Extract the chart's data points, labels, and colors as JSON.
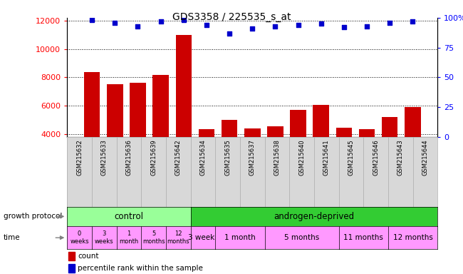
{
  "title": "GDS3358 / 225535_s_at",
  "samples": [
    "GSM215632",
    "GSM215633",
    "GSM215636",
    "GSM215639",
    "GSM215642",
    "GSM215634",
    "GSM215635",
    "GSM215637",
    "GSM215638",
    "GSM215640",
    "GSM215641",
    "GSM215645",
    "GSM215646",
    "GSM215643",
    "GSM215644"
  ],
  "counts": [
    8400,
    7500,
    7600,
    8200,
    11000,
    4350,
    5000,
    4400,
    4550,
    5700,
    6050,
    4450,
    4350,
    5200,
    5900
  ],
  "percentile_ranks": [
    98,
    96,
    93,
    97,
    98,
    94,
    87,
    91,
    93,
    94,
    95,
    92,
    93,
    96,
    97
  ],
  "ylim_left": [
    3800,
    12200
  ],
  "ylim_right": [
    0,
    100
  ],
  "yticks_left": [
    4000,
    6000,
    8000,
    10000,
    12000
  ],
  "yticks_right": [
    0,
    25,
    50,
    75,
    100
  ],
  "bar_color": "#cc0000",
  "dot_color": "#0000cc",
  "grid_color": "#000000",
  "bg_color": "#ffffff",
  "control_color": "#99ff99",
  "androgen_color": "#33cc33",
  "time_color": "#ff99ff",
  "sample_cell_color": "#d8d8d8",
  "growth_protocol_label": "growth protocol",
  "time_label": "time",
  "control_label": "control",
  "androgen_label": "androgen-deprived",
  "n_control": 5,
  "n_total": 15,
  "time_labels_control": [
    "0\nweeks",
    "3\nweeks",
    "1\nmonth",
    "5\nmonths",
    "12\nmonths"
  ],
  "time_labels_androgen": [
    "3 weeks",
    "1 month",
    "5 months",
    "11 months",
    "12 months"
  ],
  "androgen_time_groups": [
    [
      5
    ],
    [
      6,
      7
    ],
    [
      8,
      9,
      10
    ],
    [
      11,
      12
    ],
    [
      13,
      14
    ]
  ],
  "legend_count": "count",
  "legend_pct": "percentile rank within the sample"
}
